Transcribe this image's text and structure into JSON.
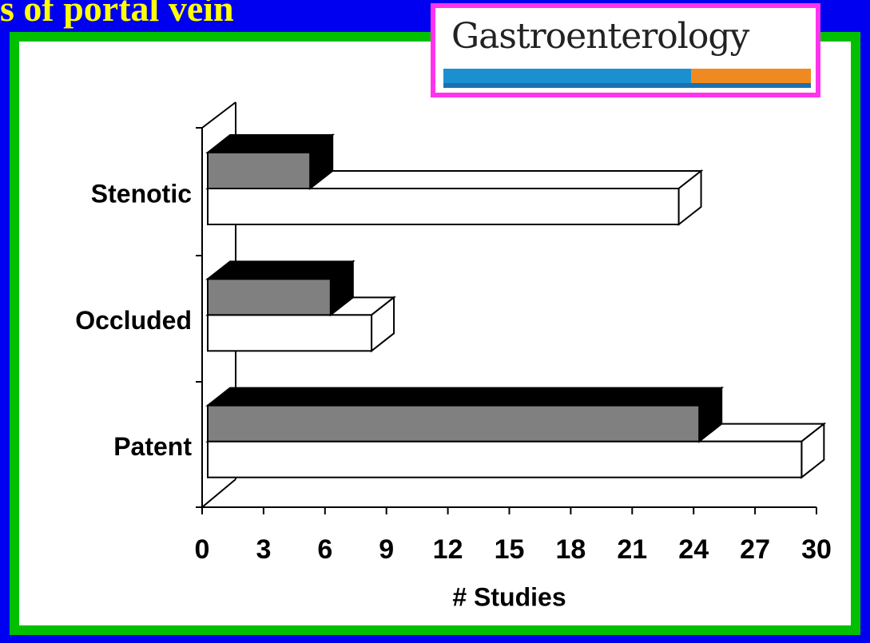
{
  "header": {
    "title": "s of portal vein",
    "logo": "Gastroenterology"
  },
  "chart_data": {
    "type": "bar3d-horizontal",
    "categories": [
      "Stenotic",
      "Occluded",
      "Patent"
    ],
    "series": [
      {
        "color": "#808080",
        "values": [
          5,
          6,
          24
        ]
      },
      {
        "color": "#ffffff",
        "values": [
          23,
          8,
          29
        ]
      }
    ],
    "xlim": [
      0,
      30
    ],
    "xticks": [
      0,
      3,
      6,
      9,
      12,
      15,
      18,
      21,
      24,
      27,
      30
    ],
    "xlabel": "# Studies"
  }
}
